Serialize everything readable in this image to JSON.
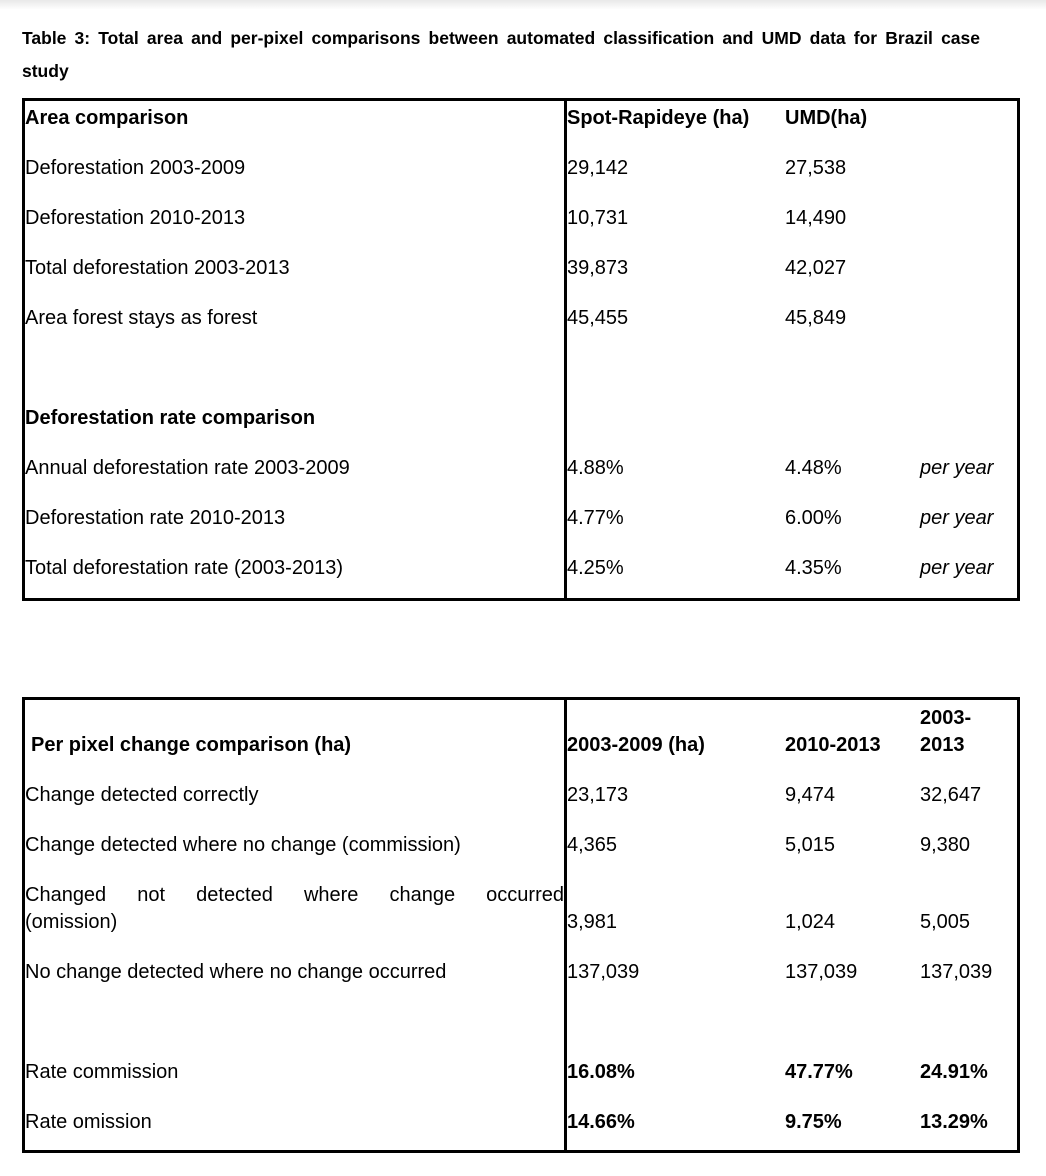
{
  "document": {
    "caption": "Table 3: Total area and per-pixel comparisons between automated classification and UMD data for Brazil case study"
  },
  "colors": {
    "text": "#000000",
    "border": "#000000",
    "background": "#ffffff",
    "top_strip": "#e9e9e9"
  },
  "area_table": {
    "header": {
      "label": "Area comparison",
      "col1": "Spot-Rapideye (ha)",
      "col2": "UMD(ha)"
    },
    "rows": [
      {
        "label": "Deforestation 2003-2009",
        "spot": "29,142",
        "umd": "27,538"
      },
      {
        "label": "Deforestation 2010-2013",
        "spot": "10,731",
        "umd": "14,490"
      },
      {
        "label": "Total deforestation 2003-2013",
        "spot": "39,873",
        "umd": "42,027"
      },
      {
        "label": "Area forest stays as forest",
        "spot": "45,455",
        "umd": "45,849"
      }
    ],
    "rate_section_title": "Deforestation rate comparison",
    "rate_rows": [
      {
        "label": "Annual deforestation rate 2003-2009",
        "spot": "4.88%",
        "umd": "4.48%",
        "unit": "per year"
      },
      {
        "label": "Deforestation rate 2010-2013",
        "spot": "4.77%",
        "umd": "6.00%",
        "unit": "per year"
      },
      {
        "label": "Total deforestation rate (2003-2013)",
        "spot": "4.25%",
        "umd": "4.35%",
        "unit": "per year"
      }
    ]
  },
  "pixel_table": {
    "header": {
      "label": "Per pixel change comparison (ha)",
      "col1": "2003-2009 (ha)",
      "col2": "2010-2013",
      "col3_line1": "2003-",
      "col3_line2": "2013"
    },
    "rows": [
      {
        "label": "Change detected correctly",
        "v1": "23,173",
        "v2": "9,474",
        "v3": "32,647"
      },
      {
        "label": "Change detected where no change (commission)",
        "v1": "4,365",
        "v2": "5,015",
        "v3": "9,380"
      },
      {
        "label_line1": "Changed not detected where change occurred",
        "label_line2": "(omission)",
        "v1": "3,981",
        "v2": "1,024",
        "v3": "5,005"
      },
      {
        "label": "No change detected where no change occurred",
        "v1": "137,039",
        "v2": "137,039",
        "v3": "137,039"
      }
    ],
    "rate_rows": [
      {
        "label": "Rate commission",
        "v1": "16.08%",
        "v2": "47.77%",
        "v3": "24.91%"
      },
      {
        "label": "Rate omission",
        "v1": "14.66%",
        "v2": "9.75%",
        "v3": "13.29%"
      }
    ]
  }
}
